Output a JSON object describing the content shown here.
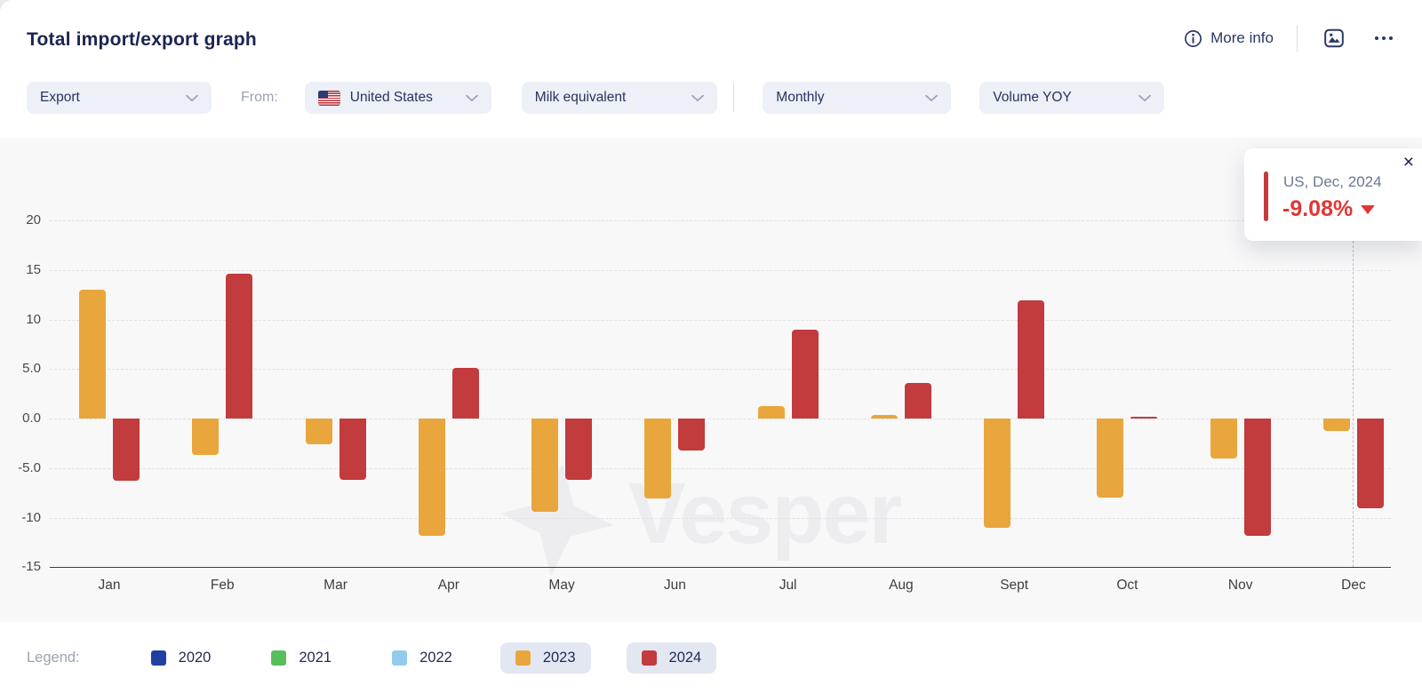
{
  "header": {
    "title": "Total import/export graph",
    "more_info_label": "More info"
  },
  "filters": {
    "trade_flow": {
      "value": "Export"
    },
    "from_label": "From:",
    "country": {
      "value": "United States",
      "flag": "united-states"
    },
    "product": {
      "value": "Milk equivalent"
    },
    "frequency": {
      "value": "Monthly"
    },
    "metric": {
      "value": "Volume YOY"
    }
  },
  "tooltip": {
    "title": "US, Dec, 2024",
    "value": "-9.08%",
    "direction": "down",
    "accent_color": "#c43b3d",
    "value_color": "#e33535",
    "close_icon": "×"
  },
  "legend": {
    "label": "Legend:",
    "items": [
      {
        "label": "2020",
        "color": "#20409f",
        "selected": false
      },
      {
        "label": "2021",
        "color": "#58be5c",
        "selected": false
      },
      {
        "label": "2022",
        "color": "#93cbee",
        "selected": false
      },
      {
        "label": "2023",
        "color": "#e8a63d",
        "selected": true
      },
      {
        "label": "2024",
        "color": "#c23b3d",
        "selected": true
      }
    ]
  },
  "chart_data": {
    "type": "bar",
    "title": "Total import/export graph",
    "categories": [
      "Jan",
      "Feb",
      "Mar",
      "Apr",
      "May",
      "Jun",
      "Jul",
      "Aug",
      "Sept",
      "Oct",
      "Nov",
      "Dec"
    ],
    "series": [
      {
        "name": "2023",
        "color": "#e8a63d",
        "values": [
          13.0,
          -3.7,
          -2.6,
          -11.8,
          -9.4,
          -8.1,
          1.3,
          0.4,
          -11.0,
          -8.0,
          -4.0,
          -1.3
        ]
      },
      {
        "name": "2024",
        "color": "#c23b3d",
        "values": [
          -6.3,
          14.6,
          -6.2,
          5.1,
          -6.2,
          -3.2,
          9.0,
          3.6,
          11.9,
          0.2,
          -11.8,
          -9.08
        ]
      }
    ],
    "y_ticks": [
      "20",
      "15",
      "10",
      "5.0",
      "0.0",
      "-5.0",
      "-10",
      "-15"
    ],
    "y_tick_values": [
      20,
      15,
      10,
      5,
      0,
      -5,
      -10,
      -15
    ],
    "ylim": [
      -15,
      20
    ],
    "xlabel": "",
    "ylabel": "",
    "grid": "dashed-horizontal",
    "legend_position": "bottom",
    "highlight": {
      "category": "Dec",
      "series": "2024",
      "value": "-9.08%"
    },
    "watermark": "Vesper"
  }
}
